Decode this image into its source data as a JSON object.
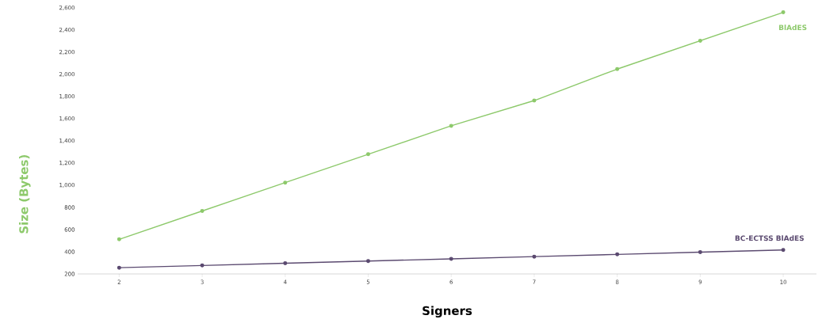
{
  "chart_data": {
    "type": "line",
    "xlabel": "Signers",
    "ylabel": "Size (Bytes)",
    "x": [
      2,
      3,
      4,
      5,
      6,
      7,
      8,
      9,
      10
    ],
    "series": [
      {
        "name": "BlAdES",
        "color": "#8dc96b",
        "values": [
          512,
          768,
          1024,
          1280,
          1536,
          1764,
          2048,
          2304,
          2560
        ]
      },
      {
        "name": "BC-ECTSS BlAdES",
        "color": "#5b4a70",
        "values": [
          256,
          276,
          296,
          316,
          336,
          356,
          376,
          396,
          416
        ]
      }
    ],
    "xlim": [
      1.5,
      10.4
    ],
    "ylim": [
      200,
      2600
    ],
    "xticks": [
      2,
      3,
      4,
      5,
      6,
      7,
      8,
      9,
      10
    ],
    "yticks": [
      200,
      {
        "value": 400,
        "label": "400"
      },
      {
        "value": 600,
        "label": "600"
      },
      {
        "value": 800,
        "label": "800"
      },
      {
        "value": 1000,
        "label": "1,000"
      },
      {
        "value": 1200,
        "label": "1,200"
      },
      {
        "value": 1400,
        "label": "1,400"
      },
      {
        "value": 1600,
        "label": "1,600"
      },
      {
        "value": 1800,
        "label": "1,800"
      },
      {
        "value": 2000,
        "label": "2,000"
      },
      {
        "value": 2200,
        "label": "2,200"
      },
      {
        "value": 2400,
        "label": "2,400"
      },
      {
        "value": 2600,
        "label": "2,600"
      }
    ],
    "marker": "circle",
    "grid": false,
    "legend": false
  }
}
